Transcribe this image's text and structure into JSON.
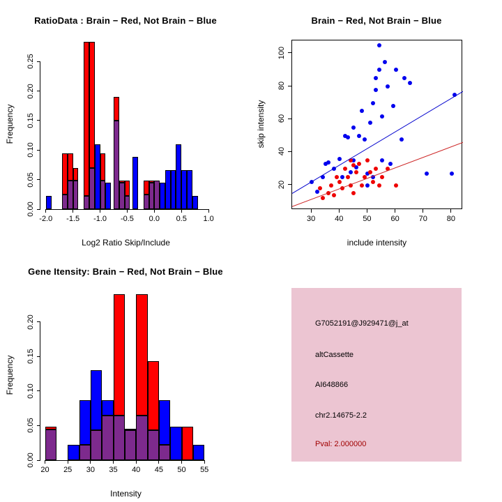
{
  "figure": {
    "background": "#FFFFFF"
  },
  "chart_data": [
    {
      "id": "ratio-hist",
      "type": "bar",
      "subtype": "overlaid-histogram",
      "title": "RatioData : Brain − Red, Not Brain − Blue",
      "xlabel": "Log2 Ratio Skip/Include",
      "ylabel": "Frequency",
      "xlim": [
        -2.1,
        1.05
      ],
      "ylim": [
        0,
        0.287
      ],
      "grid": false,
      "xticks": [
        "-2.0",
        "-1.5",
        "-1.0",
        "-0.5",
        "0.0",
        "0.5",
        "1.0"
      ],
      "yticks": [
        "0.00",
        "0.05",
        "0.10",
        "0.15",
        "0.20",
        "0.25"
      ],
      "bin_width": 0.1,
      "colors": {
        "red": "#FF0000",
        "blue": "#0000FF",
        "overlap": "#7D2A8D"
      },
      "bins": [
        {
          "x0": -2.0,
          "red": 0,
          "blue": 0.022
        },
        {
          "x0": -1.7,
          "red": 0.095,
          "blue": 0.025
        },
        {
          "x0": -1.6,
          "red": 0.095,
          "blue": 0.048
        },
        {
          "x0": -1.5,
          "red": 0.07,
          "blue": 0.048
        },
        {
          "x0": -1.3,
          "red": 0.283,
          "blue": 0.022
        },
        {
          "x0": -1.2,
          "red": 0.283,
          "blue": 0.07
        },
        {
          "x0": -1.1,
          "red": 0,
          "blue": 0.11
        },
        {
          "x0": -1.0,
          "red": 0.095,
          "blue": 0.048
        },
        {
          "x0": -0.9,
          "red": 0,
          "blue": 0.045
        },
        {
          "x0": -0.75,
          "red": 0.19,
          "blue": 0.15
        },
        {
          "x0": -0.65,
          "red": 0.048,
          "blue": 0.045
        },
        {
          "x0": -0.55,
          "red": 0.048,
          "blue": 0.022
        },
        {
          "x0": -0.4,
          "red": 0,
          "blue": 0.088
        },
        {
          "x0": -0.2,
          "red": 0.048,
          "blue": 0.025
        },
        {
          "x0": -0.1,
          "red": 0.048,
          "blue": 0.045
        },
        {
          "x0": 0.0,
          "red": 0.048,
          "blue": 0.048
        },
        {
          "x0": 0.1,
          "red": 0,
          "blue": 0.045
        },
        {
          "x0": 0.2,
          "red": 0,
          "blue": 0.066
        },
        {
          "x0": 0.3,
          "red": 0,
          "blue": 0.066
        },
        {
          "x0": 0.4,
          "red": 0,
          "blue": 0.11
        },
        {
          "x0": 0.5,
          "red": 0,
          "blue": 0.066
        },
        {
          "x0": 0.6,
          "red": 0,
          "blue": 0.066
        },
        {
          "x0": 0.7,
          "red": 0,
          "blue": 0.022
        }
      ]
    },
    {
      "id": "scatter",
      "type": "scatter",
      "title": "Brain − Red, Not Brain − Blue",
      "xlabel": "include intensity",
      "ylabel": "skip intensity",
      "xlim": [
        23,
        84
      ],
      "ylim": [
        5,
        108
      ],
      "grid": false,
      "box": true,
      "xticks": [
        "30",
        "40",
        "50",
        "60",
        "70",
        "80"
      ],
      "yticks": [
        "20",
        "40",
        "60",
        "80",
        "100"
      ],
      "series": [
        {
          "key": "not-brain",
          "name": "Not Brain",
          "color": "#0000EE",
          "points": [
            [
              30,
              22
            ],
            [
              32,
              16
            ],
            [
              34,
              25
            ],
            [
              35,
              33
            ],
            [
              36,
              34
            ],
            [
              38,
              30
            ],
            [
              40,
              36
            ],
            [
              41,
              25
            ],
            [
              42,
              50
            ],
            [
              43,
              49
            ],
            [
              44,
              28
            ],
            [
              45,
              55
            ],
            [
              45,
              35
            ],
            [
              46,
              31
            ],
            [
              47,
              50
            ],
            [
              48,
              65
            ],
            [
              49,
              48
            ],
            [
              50,
              27
            ],
            [
              50,
              20
            ],
            [
              51,
              58
            ],
            [
              52,
              25
            ],
            [
              52,
              70
            ],
            [
              53,
              78
            ],
            [
              53,
              85
            ],
            [
              54,
              90
            ],
            [
              54,
              105
            ],
            [
              55,
              62
            ],
            [
              55,
              35
            ],
            [
              56,
              95
            ],
            [
              57,
              80
            ],
            [
              58,
              33
            ],
            [
              59,
              68
            ],
            [
              60,
              90
            ],
            [
              62,
              48
            ],
            [
              63,
              85
            ],
            [
              65,
              82
            ],
            [
              71,
              27
            ],
            [
              80,
              27
            ],
            [
              81,
              75
            ]
          ]
        },
        {
          "key": "brain",
          "name": "Brain",
          "color": "#EE0000",
          "points": [
            [
              33,
              18
            ],
            [
              34,
              12
            ],
            [
              36,
              15
            ],
            [
              37,
              20
            ],
            [
              38,
              14
            ],
            [
              39,
              25
            ],
            [
              40,
              22
            ],
            [
              41,
              18
            ],
            [
              42,
              30
            ],
            [
              43,
              25
            ],
            [
              44,
              20
            ],
            [
              44,
              35
            ],
            [
              45,
              32
            ],
            [
              45,
              15
            ],
            [
              46,
              28
            ],
            [
              47,
              33
            ],
            [
              48,
              20
            ],
            [
              49,
              25
            ],
            [
              50,
              35
            ],
            [
              51,
              28
            ],
            [
              52,
              22
            ],
            [
              53,
              30
            ],
            [
              54,
              20
            ],
            [
              55,
              25
            ],
            [
              57,
              30
            ],
            [
              60,
              20
            ]
          ]
        }
      ],
      "lines": [
        {
          "key": "not-brain-fit",
          "color": "#0000CD",
          "x1": 23,
          "y1": 15,
          "x2": 84,
          "y2": 77
        },
        {
          "key": "brain-fit",
          "color": "#CD2626",
          "x1": 23,
          "y1": 7,
          "x2": 84,
          "y2": 46
        }
      ]
    },
    {
      "id": "intensity-hist",
      "type": "bar",
      "subtype": "overlaid-histogram",
      "title": "Gene Itensity: Brain − Red, Not Brain − Blue",
      "xlabel": "Intensity",
      "ylabel": "Frequency",
      "xlim": [
        19,
        56.5
      ],
      "ylim": [
        0,
        0.245
      ],
      "grid": false,
      "xticks": [
        "20",
        "25",
        "30",
        "35",
        "40",
        "45",
        "50",
        "55"
      ],
      "yticks": [
        "0.00",
        "0.05",
        "0.10",
        "0.15",
        "0.20"
      ],
      "bin_width": 2.5,
      "colors": {
        "red": "#FF0000",
        "blue": "#0000FF",
        "overlap": "#7D2A8D"
      },
      "bins": [
        {
          "x0": 20,
          "red": 0.048,
          "blue": 0.044
        },
        {
          "x0": 25,
          "red": 0,
          "blue": 0.022
        },
        {
          "x0": 27.5,
          "red": 0.022,
          "blue": 0.087
        },
        {
          "x0": 30,
          "red": 0.043,
          "blue": 0.13
        },
        {
          "x0": 32.5,
          "red": 0.065,
          "blue": 0.087
        },
        {
          "x0": 35,
          "red": 0.24,
          "blue": 0.065
        },
        {
          "x0": 37.5,
          "red": 0.045,
          "blue": 0.043
        },
        {
          "x0": 40,
          "red": 0.24,
          "blue": 0.065
        },
        {
          "x0": 42.5,
          "red": 0.143,
          "blue": 0.043
        },
        {
          "x0": 45,
          "red": 0.022,
          "blue": 0.087
        },
        {
          "x0": 47.5,
          "red": 0,
          "blue": 0.048
        },
        {
          "x0": 50,
          "red": 0.048,
          "blue": 0
        },
        {
          "x0": 52.5,
          "red": 0,
          "blue": 0.022
        }
      ]
    }
  ],
  "info_panel": {
    "bg": "#ECC5D2",
    "lines": [
      "G7052191@J929471@j_at",
      "altCassette",
      "AI648866",
      "chr2.14675-2.2"
    ],
    "pval": "Pval: 2.000000",
    "pval_color": "#A00000"
  }
}
